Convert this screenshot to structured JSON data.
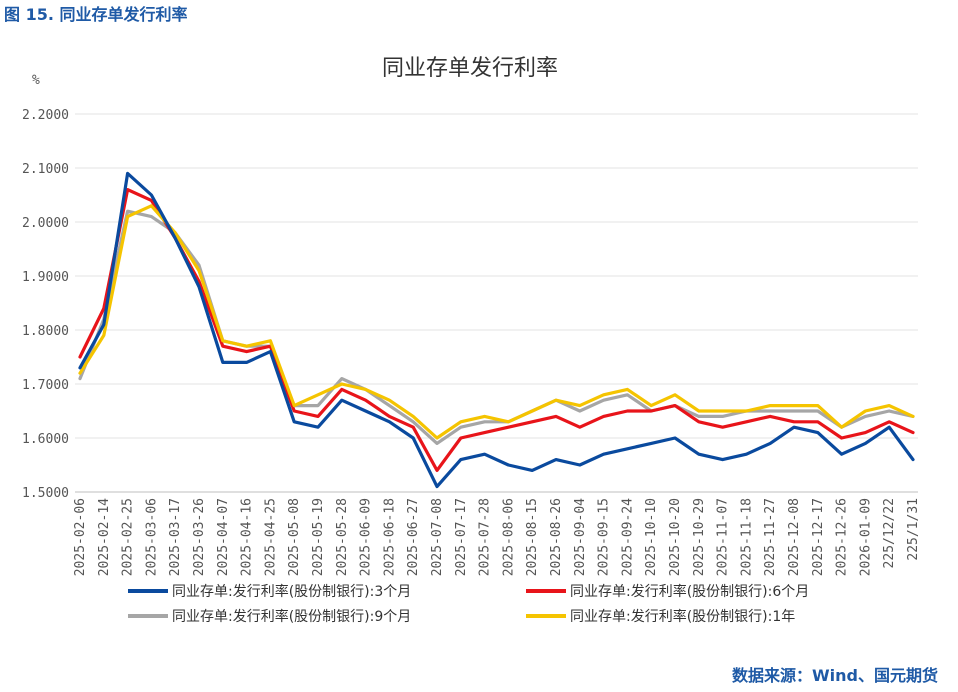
{
  "figure_title": "图 15. 同业存单发行利率",
  "source_note": "数据来源：Wind、国元期货",
  "colors": {
    "3m": "#0a4a9e",
    "6m": "#e8141a",
    "9m": "#a6a6a6",
    "1y": "#f5c400",
    "grid": "#e3e3e3",
    "text": "#555555"
  },
  "chart_data": {
    "type": "line",
    "title": "同业存单发行利率",
    "unit_label": "%",
    "xlabel": "",
    "ylabel": "",
    "ylim": [
      1.5,
      2.2
    ],
    "yticks": [
      "1.5000",
      "1.6000",
      "1.7000",
      "1.8000",
      "1.9000",
      "2.0000",
      "2.1000",
      "2.2000"
    ],
    "grid": true,
    "legend_position": "bottom",
    "x_tick_labels": [
      "2025-02-06",
      "2025-02-14",
      "2025-02-25",
      "2025-03-06",
      "2025-03-17",
      "2025-03-26",
      "2025-04-07",
      "2025-04-16",
      "2025-04-25",
      "2025-05-08",
      "2025-05-19",
      "2025-05-28",
      "2025-06-09",
      "2025-06-18",
      "2025-06-27",
      "2025-07-08",
      "2025-07-17",
      "2025-07-28",
      "2025-08-06",
      "2025-08-15",
      "2025-08-26",
      "2025-09-04",
      "2025-09-15",
      "2025-09-24",
      "2025-10-10",
      "2025-10-20",
      "2025-10-29",
      "2025-11-07",
      "2025-11-18",
      "2025-11-27",
      "2025-12-08",
      "2025-12-17",
      "2025-12-26",
      "2026-01-09",
      "225/12/22",
      "225/1/31"
    ],
    "x": [
      "2025-02-06",
      "2025-02-14",
      "2025-02-25",
      "2025-03-06",
      "2025-03-17",
      "2025-03-26",
      "2025-04-07",
      "2025-04-16",
      "2025-04-25",
      "2025-05-08",
      "2025-05-19",
      "2025-05-28",
      "2025-06-09",
      "2025-06-18",
      "2025-06-27",
      "2025-07-08",
      "2025-07-17",
      "2025-07-28",
      "2025-08-06",
      "2025-08-15",
      "2025-08-26",
      "2025-09-04",
      "2025-09-15",
      "2025-09-24",
      "2025-10-10",
      "2025-10-20",
      "2025-10-29",
      "2025-11-07",
      "2025-11-18",
      "2025-11-27",
      "2025-12-08",
      "2025-12-17",
      "2025-12-26",
      "2026-01-09",
      "225/12/22",
      "225/1/31"
    ],
    "series": [
      {
        "name": "同业存单:发行利率(股份制银行):3个月",
        "color_key": "3m",
        "values": [
          1.73,
          1.81,
          2.09,
          2.05,
          1.97,
          1.88,
          1.74,
          1.74,
          1.76,
          1.63,
          1.62,
          1.67,
          1.65,
          1.63,
          1.6,
          1.51,
          1.56,
          1.57,
          1.55,
          1.54,
          1.56,
          1.55,
          1.57,
          1.58,
          1.59,
          1.6,
          1.57,
          1.56,
          1.57,
          1.59,
          1.62,
          1.61,
          1.57,
          1.59,
          1.62,
          1.56
        ]
      },
      {
        "name": "同业存单:发行利率(股份制银行):6个月",
        "color_key": "6m",
        "values": [
          1.75,
          1.84,
          2.06,
          2.04,
          1.97,
          1.89,
          1.77,
          1.76,
          1.77,
          1.65,
          1.64,
          1.69,
          1.67,
          1.64,
          1.62,
          1.54,
          1.6,
          1.61,
          1.62,
          1.63,
          1.64,
          1.62,
          1.64,
          1.65,
          1.65,
          1.66,
          1.63,
          1.62,
          1.63,
          1.64,
          1.63,
          1.63,
          1.6,
          1.61,
          1.63,
          1.61
        ]
      },
      {
        "name": "同业存单:发行利率(股份制银行):9个月",
        "color_key": "9m",
        "values": [
          1.71,
          1.82,
          2.02,
          2.01,
          1.98,
          1.92,
          1.78,
          1.77,
          1.77,
          1.66,
          1.66,
          1.71,
          1.69,
          1.66,
          1.63,
          1.59,
          1.62,
          1.63,
          1.63,
          1.65,
          1.67,
          1.65,
          1.67,
          1.68,
          1.65,
          1.66,
          1.64,
          1.64,
          1.65,
          1.65,
          1.65,
          1.65,
          1.62,
          1.64,
          1.65,
          1.64
        ]
      },
      {
        "name": "同业存单:发行利率(股份制银行):1年",
        "color_key": "1y",
        "values": [
          1.72,
          1.79,
          2.01,
          2.03,
          1.98,
          1.91,
          1.78,
          1.77,
          1.78,
          1.66,
          1.68,
          1.7,
          1.69,
          1.67,
          1.64,
          1.6,
          1.63,
          1.64,
          1.63,
          1.65,
          1.67,
          1.66,
          1.68,
          1.69,
          1.66,
          1.68,
          1.65,
          1.65,
          1.65,
          1.66,
          1.66,
          1.66,
          1.62,
          1.65,
          1.66,
          1.64
        ]
      }
    ]
  }
}
